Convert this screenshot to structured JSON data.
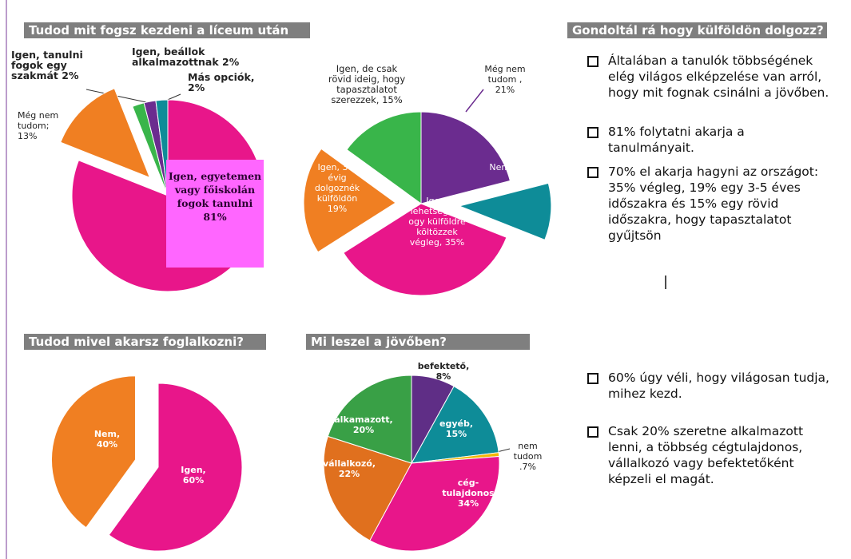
{
  "chart_data": [
    {
      "type": "pie",
      "title": "Tudod mit fogsz kezdeni a líceum után",
      "categories": [
        "Igen, egyetemen vagy főiskolán fogok tanulni",
        "Még nem tudom;",
        "Igen, tanulni fogok egy szakmát",
        "Igen, beállok alkalmazottnak",
        "Más opciók,"
      ],
      "values": [
        81,
        13,
        2,
        2,
        2
      ],
      "value_labels": [
        "81%",
        "13%",
        "2%",
        "2%",
        "2%"
      ],
      "colors": [
        "#e8168a",
        "#f07f22",
        "#39b54a",
        "#6b2c8f",
        "#0e8c98"
      ],
      "exploded": [
        1
      ]
    },
    {
      "type": "pie",
      "categories": [
        "Még nem tudom ,",
        "Nem,",
        "Igen, lehetségesh ogy külföldre költözzek végleg,",
        "Igen, 3-5 évig dolgoznék külföldön",
        "Igen, de csak rövid ideig, hogy tapasztalatot szerezzek,"
      ],
      "values": [
        21,
        10,
        35,
        19,
        15
      ],
      "value_labels": [
        "21%",
        "10%",
        "35%",
        "19%",
        "15%"
      ],
      "colors": [
        "#6b2c8f",
        "#0e8c98",
        "#e8168a",
        "#f07f22",
        "#39b54a"
      ],
      "exploded": [
        1,
        3
      ]
    },
    {
      "type": "pie",
      "title": "Tudod mivel akarsz foglalkozni?",
      "categories": [
        "Igen,",
        "Nem,"
      ],
      "values": [
        60,
        40
      ],
      "value_labels": [
        "60%",
        "40%"
      ],
      "colors": [
        "#e8168a",
        "#f07f22"
      ],
      "exploded": [
        1
      ]
    },
    {
      "type": "pie",
      "title": "Mi leszel a jövőben?",
      "categories": [
        "befektető,",
        "egyéb,",
        "nem tudom",
        "cég-tulajdonos",
        "vállalkozó,",
        "alkamazott,"
      ],
      "values": [
        8,
        15,
        0.7,
        34,
        22,
        20
      ],
      "value_labels": [
        "8%",
        "15%",
        ".7%",
        "34%",
        "22%",
        "20%"
      ],
      "colors": [
        "#5f2e86",
        "#0e8c98",
        "#f2b705",
        "#e8168a",
        "#e0701e",
        "#39a046"
      ],
      "exploded": []
    }
  ],
  "notes": {
    "title": "Gondoltál rá hogy külföldön dolgozz?",
    "bullets": [
      "Általában a tanulók többségének elég világos elképzelése van arról, hogy mit fognak csinálni a jövőben.",
      "81% folytatni akarja a tanulmányait.",
      "70% el akarja hagyni az országot: 35% végleg, 19% egy 3-5 éves időszakra és 15% egy rövid időszakra, hogy tapasztalatot gyűjtsön"
    ],
    "bullets2": [
      "60% úgy véli, hogy világosan tudja, mihez kezd.",
      "Csak 20% szeretne alkalmazott lenni, a többség cégtulajdonos, vállalkozó vagy befektetőként képzeli el magát."
    ]
  }
}
